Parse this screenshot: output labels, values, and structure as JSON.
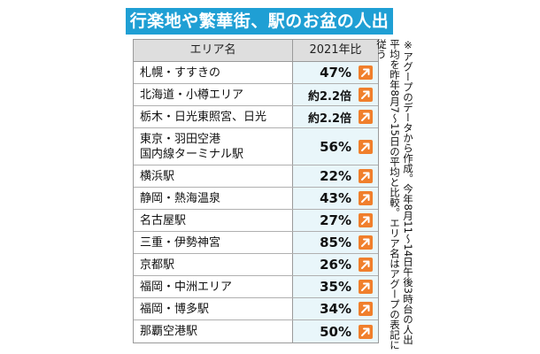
{
  "title": "行楽地や繁華街、駅のお盆の人出",
  "chart_data": {
    "type": "table",
    "columns": [
      "エリア名",
      "2021年比"
    ],
    "rows": [
      {
        "area": [
          "札幌・すすきの"
        ],
        "value": "47%"
      },
      {
        "area": [
          "北海道・小樽エリア"
        ],
        "value": "約2.2倍"
      },
      {
        "area": [
          "栃木・日光東照宮、日光"
        ],
        "value": "約2.2倍"
      },
      {
        "area": [
          "東京・羽田空港",
          "国内線ターミナル駅"
        ],
        "value": "56%"
      },
      {
        "area": [
          "横浜駅"
        ],
        "value": "22%"
      },
      {
        "area": [
          "静岡・熱海温泉"
        ],
        "value": "43%"
      },
      {
        "area": [
          "名古屋駅"
        ],
        "value": "27%"
      },
      {
        "area": [
          "三重・伊勢神宮"
        ],
        "value": "85%"
      },
      {
        "area": [
          "京都駅"
        ],
        "value": "26%"
      },
      {
        "area": [
          "福岡・中洲エリア"
        ],
        "value": "35%"
      },
      {
        "area": [
          "福岡・博多駅"
        ],
        "value": "34%"
      },
      {
        "area": [
          "那覇空港駅"
        ],
        "value": "50%"
      }
    ],
    "trend_icon": "up-right-arrow-icon",
    "arrow_color": "#f07f2c"
  },
  "note": "※アグープのデータから作成。今年8月11～14日午後3時台の人出平均を昨年8月7～15日の平均と比較。エリア名はアグープの表記に従う",
  "colors": {
    "title_bg": "#1f9fd4",
    "value_bg": "#e9f6fa",
    "header_bg": "#dedede"
  }
}
